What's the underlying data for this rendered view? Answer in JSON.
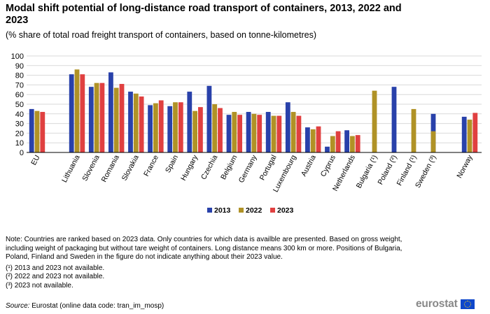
{
  "header": {
    "title": "Modal shift potential of long-distance road transport of containers, 2013, 2022 and 2023",
    "subtitle": "(% share of total road freight transport of containers, based on tonne-kilometres)"
  },
  "colors": {
    "s2013": "#2941aa",
    "s2022": "#b09226",
    "s2023": "#e04040",
    "grid": "#d9d9d9",
    "axis": "#000000"
  },
  "chart_data": {
    "type": "bar",
    "title": "Modal shift potential of long-distance road transport of containers, 2013, 2022 and 2023",
    "subtitle": "(% share of total road freight transport of containers, based on tonne-kilometres)",
    "categories": [
      "EU",
      "Lithuania",
      "Slovenia",
      "Romania",
      "Slovakia",
      "France",
      "Spain",
      "Hungary",
      "Czechia",
      "Belgium",
      "Germany",
      "Portugal",
      "Luxembourg",
      "Austria",
      "Cyprus",
      "Netherlands",
      "Bulgaria (¹)",
      "Poland (²)",
      "Finland (¹)",
      "Sweden (³)",
      "Norway"
    ],
    "series": [
      {
        "name": "2013",
        "values": [
          45,
          81,
          68,
          83,
          63,
          49,
          48,
          63,
          69,
          39,
          42,
          42,
          52,
          26,
          6,
          23,
          null,
          68,
          null,
          40,
          37
        ]
      },
      {
        "name": "2022",
        "values": [
          43,
          86,
          72,
          67,
          61,
          51,
          52,
          43,
          50,
          42,
          40,
          38,
          42,
          24,
          17,
          17,
          64,
          null,
          45,
          22,
          34
        ]
      },
      {
        "name": "2023",
        "values": [
          42,
          81,
          72,
          71,
          58,
          54,
          52,
          47,
          46,
          39,
          39,
          38,
          38,
          27,
          22,
          18,
          null,
          null,
          null,
          null,
          41
        ]
      }
    ],
    "ylim": [
      0,
      100
    ],
    "yticks": [
      0,
      10,
      20,
      30,
      40,
      50,
      60,
      70,
      80,
      90,
      100
    ],
    "grid": true,
    "legend_position": "bottom-center",
    "xlabel": "",
    "ylabel": ""
  },
  "notes": {
    "main": "Note: Countries are ranked based on 2023 data. Only countries for which data is availble are presented. Based on gross weight, including weight of packaging but without tare weight of containers. Long distance means 300 km or more. Positions of Bulgaria, Poland, Finland and Sweden in the figure do not indicate anything  about their 2023 value.",
    "f1": "(¹) 2013 and 2023 not available.",
    "f2": "(²) 2022 and 2023 not available.",
    "f3": "(³) 2023 not available."
  },
  "source": {
    "label": "Source:",
    "text": " Eurostat (online data code: tran_im_mosp)"
  },
  "logo": {
    "text": "eurostat"
  }
}
